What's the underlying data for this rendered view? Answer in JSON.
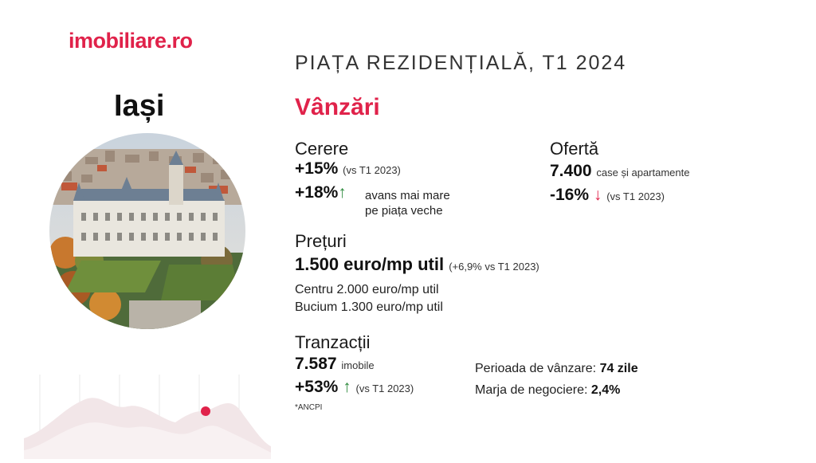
{
  "brand": {
    "logo_text": "imobiliare.ro",
    "accent": "#e0224a"
  },
  "report_title": "PIAȚA REZIDENȚIALĂ, T1 2024",
  "city": "Iași",
  "section": "Vânzări",
  "cerere": {
    "heading": "Cerere",
    "value1": "+15%",
    "note1": "(vs T1 2023)",
    "value2": "+18%",
    "note2_line1": "avans mai mare",
    "note2_line2": "pe piața veche"
  },
  "oferta": {
    "heading": "Ofertă",
    "value1": "7.400",
    "note1": "case și apartamente",
    "value2": "-16%",
    "note2": "(vs T1 2023)"
  },
  "preturi": {
    "heading": "Prețuri",
    "value": "1.500 euro/mp util",
    "note": "(+6,9% vs T1 2023)",
    "line1": "Centru 2.000 euro/mp util",
    "line2": "Bucium 1.300 euro/mp util"
  },
  "tranzactii": {
    "heading": "Tranzacții",
    "value1": "7.587",
    "note1": "imobile",
    "value2": "+53%",
    "note2": "(vs T1 2023)",
    "footnote": "*ANCPI"
  },
  "perioada": {
    "label": "Perioada de vânzare:",
    "value": "74 zile"
  },
  "marja": {
    "label": "Marja de negociere:",
    "value": "2,4%"
  },
  "icons": {
    "up": "arrow-up-icon",
    "down": "arrow-down-icon"
  }
}
